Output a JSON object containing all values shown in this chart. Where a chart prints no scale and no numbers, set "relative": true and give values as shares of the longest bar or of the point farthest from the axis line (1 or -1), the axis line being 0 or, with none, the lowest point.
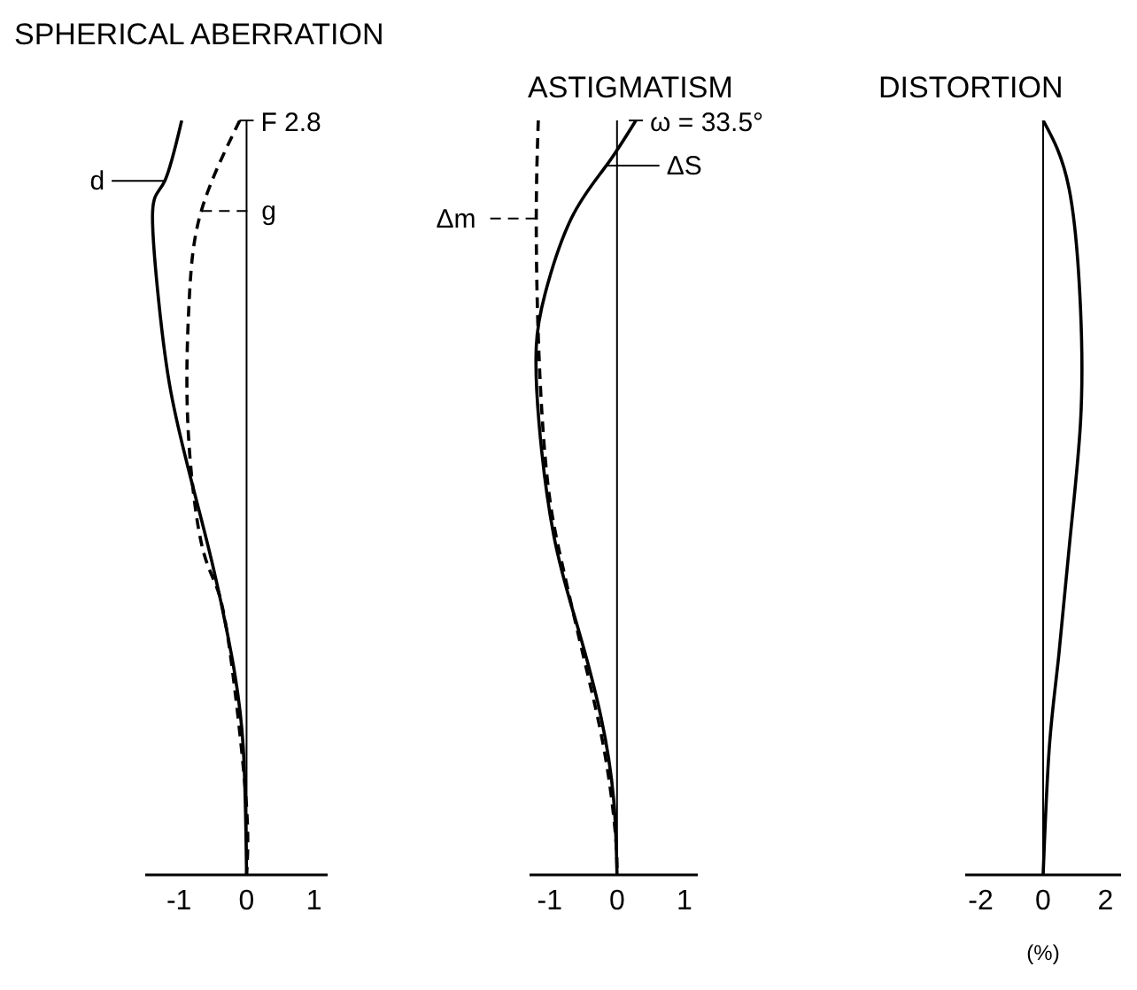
{
  "chart_data": [
    {
      "type": "line",
      "title": "SPHERICAL ABERRATION",
      "relative": true,
      "xlim": [
        -1.5,
        1.2
      ],
      "xticks": [
        -1,
        0,
        1
      ],
      "marker": "none",
      "ref_lines": [
        {
          "axis": "x",
          "value": 0
        }
      ],
      "annotations": [
        {
          "text": "F 2.8",
          "x": 0,
          "y": 1
        }
      ],
      "series": [
        {
          "name": "d",
          "color": "#000000",
          "line_style": "solid",
          "x": [
            -0.96,
            -1.21,
            -1.39,
            -1.3,
            -1.12,
            -0.81,
            -0.5,
            -0.22,
            -0.05,
            0
          ],
          "values": [
            1,
            0.92,
            0.88,
            0.76,
            0.64,
            0.52,
            0.41,
            0.29,
            0.17,
            0
          ]
        },
        {
          "name": "g",
          "color": "#000000",
          "line_style": "dashed",
          "x": [
            -0.1,
            -0.67,
            -0.85,
            -0.87,
            -0.67,
            -0.4,
            -0.18,
            0,
            0
          ],
          "values": [
            1,
            0.88,
            0.76,
            0.6,
            0.44,
            0.37,
            0.25,
            0.09,
            0
          ]
        }
      ]
    },
    {
      "type": "line",
      "title": "ASTIGMATISM",
      "relative": true,
      "xlim": [
        -1.3,
        1.2
      ],
      "xticks": [
        -1,
        0,
        1
      ],
      "marker": "none",
      "ref_lines": [
        {
          "axis": "x",
          "value": 0
        }
      ],
      "annotations": [
        {
          "text": "ω = 33.5°",
          "x": 0.28,
          "y": 1
        }
      ],
      "series": [
        {
          "name": "Δm",
          "color": "#000000",
          "line_style": "dashed",
          "x": [
            -1.17,
            -1.2,
            -1.16,
            -1.03,
            -0.81,
            -0.5,
            -0.2,
            -0.03,
            0
          ],
          "values": [
            1,
            0.87,
            0.69,
            0.52,
            0.41,
            0.29,
            0.17,
            0.06,
            0
          ]
        },
        {
          "name": "ΔS",
          "color": "#000000",
          "line_style": "solid",
          "x": [
            0.28,
            -0.16,
            -0.68,
            -1.07,
            -1.2,
            -1.16,
            -0.94,
            -0.59,
            -0.24,
            -0.05,
            0
          ],
          "values": [
            1,
            0.94,
            0.87,
            0.77,
            0.7,
            0.6,
            0.45,
            0.33,
            0.21,
            0.1,
            0
          ]
        }
      ]
    },
    {
      "type": "line",
      "title": "DISTORTION",
      "xlabel": "(%)",
      "relative": true,
      "xlim": [
        -2.5,
        2.5
      ],
      "xticks": [
        -2,
        0,
        2
      ],
      "marker": "none",
      "ref_lines": [
        {
          "axis": "x",
          "value": 0
        }
      ],
      "series": [
        {
          "color": "#000000",
          "line_style": "solid",
          "x": [
            0,
            0.83,
            1.2,
            1.2,
            0.85,
            0.5,
            0.2,
            0
          ],
          "values": [
            1,
            0.91,
            0.75,
            0.6,
            0.44,
            0.29,
            0.17,
            0
          ]
        }
      ]
    }
  ]
}
